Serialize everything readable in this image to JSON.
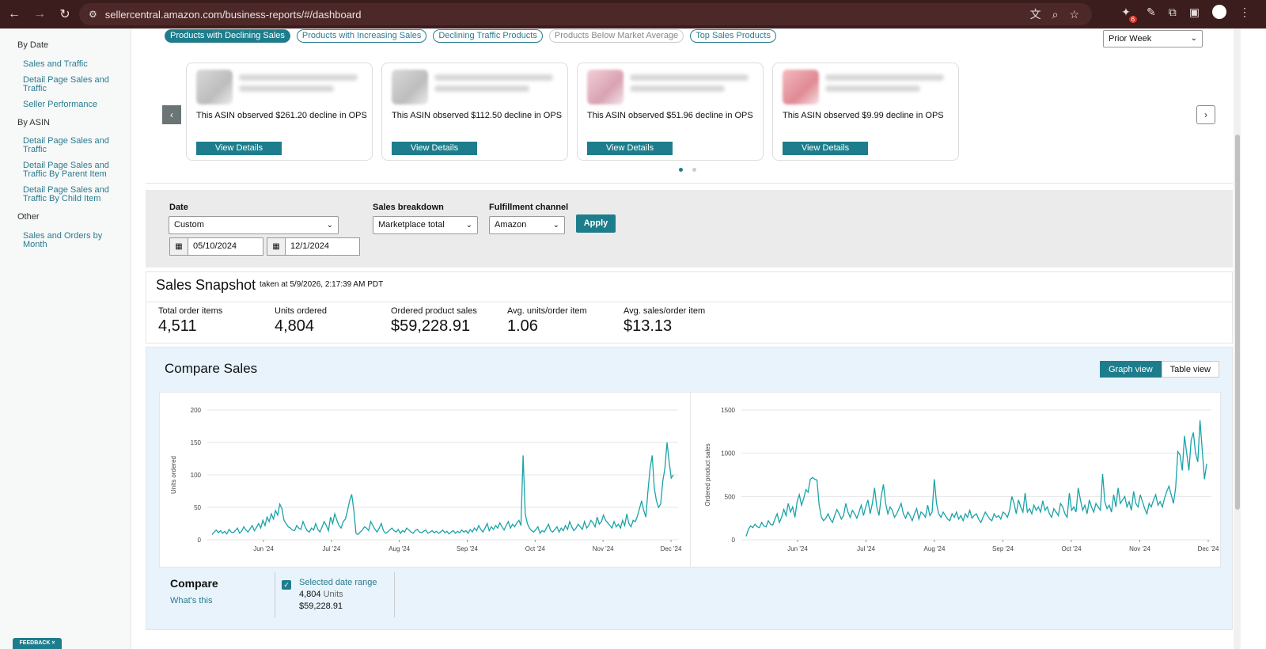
{
  "browser": {
    "url": "sellercentral.amazon.com/business-reports/#/dashboard",
    "extension_badge": "6"
  },
  "sidebar": {
    "sections": [
      {
        "heading": "By Date",
        "items": [
          "Sales and Traffic",
          "Detail Page Sales and Traffic",
          "Seller Performance"
        ]
      },
      {
        "heading": "By ASIN",
        "items": [
          "Detail Page Sales and Traffic",
          "Detail Page Sales and Traffic By Parent Item",
          "Detail Page Sales and Traffic By Child Item"
        ]
      },
      {
        "heading": "Other",
        "items": [
          "Sales and Orders by Month"
        ]
      }
    ],
    "feedback_label": "FEEDBACK"
  },
  "insights": {
    "pills": [
      "Products with Declining Sales",
      "Products with Increasing Sales",
      "Declining Traffic Products",
      "Products Below Market Average",
      "Top Sales Products"
    ],
    "period": "Prior Week",
    "cards": [
      {
        "text": "This ASIN observed $261.20 decline in OPS",
        "button": "View Details"
      },
      {
        "text": "This ASIN observed $112.50 decline in OPS",
        "button": "View Details"
      },
      {
        "text": "This ASIN observed $51.96 decline in OPS",
        "button": "View Details"
      },
      {
        "text": "This ASIN observed $9.99 decline in OPS",
        "button": "View Details"
      }
    ]
  },
  "filters": {
    "date_label": "Date",
    "date_value": "Custom",
    "start_date": "05/10/2024",
    "end_date": "12/1/2024",
    "breakdown_label": "Sales breakdown",
    "breakdown_value": "Marketplace total",
    "channel_label": "Fulfillment channel",
    "channel_value": "Amazon",
    "apply": "Apply"
  },
  "snapshot": {
    "title": "Sales Snapshot",
    "taken_at": "taken at 5/9/2026, 2:17:39 AM PDT",
    "metrics": [
      {
        "label": "Total order items",
        "value": "4,511"
      },
      {
        "label": "Units ordered",
        "value": "4,804"
      },
      {
        "label": "Ordered product sales",
        "value": "$59,228.91"
      },
      {
        "label": "Avg. units/order item",
        "value": "1.06"
      },
      {
        "label": "Avg. sales/order item",
        "value": "$13.13"
      }
    ]
  },
  "compare": {
    "title": "Compare Sales",
    "graph_view": "Graph view",
    "table_view": "Table view",
    "compare_label": "Compare",
    "whats_this": "What's this",
    "range_label": "Selected date range",
    "units": "4,804",
    "units_suffix": "Units",
    "sales": "$59,228.91"
  },
  "chart_data": [
    {
      "type": "line",
      "ylabel": "Units ordered",
      "x_ticks": [
        "Jun '24",
        "Jul '24",
        "Aug '24",
        "Sep '24",
        "Oct '24",
        "Nov '24",
        "Dec '24"
      ],
      "y_ticks": [
        0,
        50,
        100,
        150,
        200
      ],
      "ylim": [
        0,
        200
      ],
      "grid": true,
      "values": [
        8,
        12,
        15,
        11,
        14,
        10,
        13,
        9,
        16,
        12,
        11,
        14,
        18,
        10,
        13,
        20,
        15,
        12,
        17,
        22,
        14,
        19,
        25,
        18,
        30,
        22,
        35,
        28,
        40,
        32,
        45,
        38,
        55,
        48,
        30,
        25,
        20,
        18,
        15,
        14,
        22,
        18,
        16,
        28,
        20,
        14,
        12,
        18,
        15,
        25,
        16,
        12,
        20,
        28,
        22,
        14,
        35,
        25,
        40,
        30,
        22,
        18,
        28,
        32,
        45,
        60,
        70,
        45,
        10,
        8,
        12,
        15,
        20,
        18,
        14,
        28,
        22,
        16,
        12,
        18,
        25,
        14,
        10,
        12,
        15,
        18,
        14,
        12,
        16,
        10,
        14,
        12,
        18,
        15,
        12,
        10,
        14,
        16,
        12,
        11,
        13,
        15,
        10,
        12,
        14,
        11,
        13,
        10,
        12,
        15,
        11,
        13,
        9,
        12,
        14,
        10,
        13,
        11,
        15,
        12,
        14,
        10,
        16,
        12,
        18,
        14,
        22,
        16,
        12,
        18,
        25,
        14,
        20,
        16,
        22,
        18,
        26,
        20,
        15,
        22,
        28,
        18,
        24,
        20,
        26,
        30,
        22,
        130,
        40,
        25,
        18,
        14,
        12,
        16,
        20,
        10,
        14,
        12,
        18,
        24,
        14,
        12,
        16,
        20,
        12,
        18,
        14,
        22,
        16,
        28,
        20,
        14,
        18,
        24,
        20,
        16,
        28,
        18,
        22,
        30,
        26,
        20,
        35,
        24,
        28,
        38,
        30,
        26,
        22,
        18,
        28,
        20,
        24,
        18,
        30,
        22,
        40,
        25,
        20,
        30,
        28,
        36,
        48,
        60,
        45,
        35,
        75,
        110,
        130,
        80,
        60,
        50,
        55,
        90,
        110,
        150,
        120,
        95,
        100
      ]
    },
    {
      "type": "line",
      "ylabel": "Ordered product sales",
      "x_ticks": [
        "Jun '24",
        "Jul '24",
        "Aug '24",
        "Sep '24",
        "Oct '24",
        "Nov '24",
        "Dec '24"
      ],
      "y_ticks": [
        0,
        500,
        1000,
        1500
      ],
      "ylim": [
        0,
        1500
      ],
      "grid": true,
      "values": [
        40,
        120,
        160,
        140,
        180,
        150,
        140,
        200,
        160,
        150,
        220,
        180,
        170,
        240,
        300,
        200,
        260,
        350,
        280,
        420,
        320,
        380,
        260,
        440,
        520,
        400,
        480,
        580,
        550,
        700,
        720,
        700,
        690,
        400,
        260,
        220,
        250,
        300,
        240,
        200,
        280,
        350,
        300,
        240,
        280,
        420,
        320,
        260,
        340,
        300,
        250,
        320,
        400,
        280,
        380,
        460,
        300,
        420,
        600,
        380,
        280,
        500,
        640,
        420,
        300,
        380,
        340,
        260,
        300,
        360,
        420,
        300,
        250,
        320,
        280,
        220,
        300,
        360,
        240,
        320,
        300,
        260,
        400,
        280,
        320,
        700,
        420,
        300,
        260,
        320,
        280,
        240,
        220,
        300,
        260,
        320,
        240,
        280,
        220,
        300,
        260,
        340,
        250,
        280,
        300,
        240,
        200,
        260,
        320,
        280,
        240,
        220,
        300,
        260,
        280,
        240,
        320,
        300,
        260,
        340,
        500,
        420,
        300,
        460,
        380,
        320,
        540,
        320,
        360,
        300,
        400,
        340,
        380,
        320,
        450,
        340,
        380,
        300,
        260,
        360,
        320,
        280,
        420,
        380,
        300,
        260,
        540,
        340,
        380,
        320,
        600,
        460,
        340,
        400,
        300,
        460,
        380,
        320,
        420,
        380,
        340,
        760,
        440,
        360,
        400,
        320,
        520,
        380,
        600,
        420,
        460,
        500,
        380,
        440,
        340,
        560,
        420,
        380,
        520,
        440,
        360,
        300,
        420,
        380,
        460,
        520,
        400,
        440,
        380,
        480,
        560,
        620,
        520,
        420,
        600,
        1020,
        980,
        800,
        1200,
        1000,
        800,
        1150,
        1240,
        1000,
        900,
        1380,
        1040,
        700,
        880
      ]
    }
  ]
}
